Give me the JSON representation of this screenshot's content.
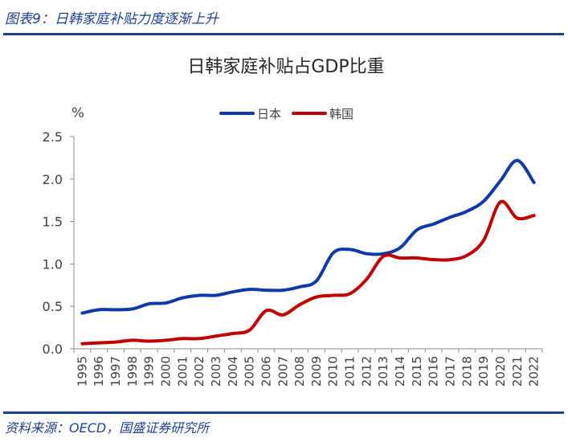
{
  "header": {
    "caption": "图表9：日韩家庭补贴力度逐渐上升"
  },
  "footer": {
    "source": "资料来源：OECD，国盛证券研究所"
  },
  "colors": {
    "accent": "#1f3f8f",
    "japan": "#0d3aa6",
    "korea": "#c00000",
    "axis": "#8c8c8c",
    "text": "#404040"
  },
  "chart_data": {
    "type": "line",
    "title": "日韩家庭补贴占GDP比重",
    "ylabel": "%",
    "xlabel": "",
    "ylim": [
      0,
      2.5
    ],
    "yticks": [
      "0.0",
      "0.5",
      "1.0",
      "1.5",
      "2.0",
      "2.5"
    ],
    "grid": false,
    "legend_position": "top-center",
    "x": [
      "1995",
      "1996",
      "1997",
      "1998",
      "1999",
      "2000",
      "2001",
      "2002",
      "2003",
      "2004",
      "2005",
      "2006",
      "2007",
      "2008",
      "2009",
      "2010",
      "2011",
      "2012",
      "2013",
      "2014",
      "2015",
      "2016",
      "2017",
      "2018",
      "2019",
      "2020",
      "2021",
      "2022"
    ],
    "series": [
      {
        "name": "日本",
        "color": "#0d3aa6",
        "values": [
          0.42,
          0.46,
          0.46,
          0.47,
          0.53,
          0.54,
          0.6,
          0.63,
          0.63,
          0.67,
          0.7,
          0.69,
          0.69,
          0.73,
          0.8,
          1.13,
          1.17,
          1.12,
          1.12,
          1.19,
          1.4,
          1.47,
          1.55,
          1.62,
          1.74,
          1.98,
          2.22,
          1.96
        ]
      },
      {
        "name": "韩国",
        "color": "#c00000",
        "values": [
          0.06,
          0.07,
          0.08,
          0.1,
          0.09,
          0.1,
          0.12,
          0.12,
          0.15,
          0.18,
          0.22,
          0.45,
          0.4,
          0.52,
          0.61,
          0.63,
          0.65,
          0.82,
          1.09,
          1.07,
          1.07,
          1.05,
          1.05,
          1.1,
          1.28,
          1.73,
          1.54,
          1.57
        ]
      }
    ]
  }
}
